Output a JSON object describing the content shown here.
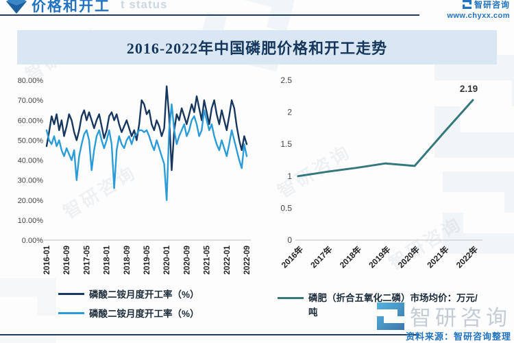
{
  "brand": {
    "name": "智研咨询",
    "site": "www.chyxx.com"
  },
  "header": {
    "section_title": "价格和开工",
    "ghost_text": "t status"
  },
  "main_title": "2016-2022年中国磷肥价格和开工走势",
  "footer": {
    "source_note": "资料来源：智研咨询整理"
  },
  "colors": {
    "accent_blue": "#2273bf",
    "navy_rule": "#1f3864",
    "band_bg": "#d9e7f4",
    "series_dark": "#17375e",
    "series_light": "#2b9cd8",
    "series_teal": "#35787c"
  },
  "chart_data": [
    {
      "type": "line",
      "x_unit": "month",
      "x_range": [
        "2016-01",
        "2022-09"
      ],
      "x_ticks": [
        "2016-01",
        "2016-09",
        "2017-05",
        "2018-01",
        "2018-09",
        "2019-05",
        "2020-01",
        "2020-09",
        "2021-05",
        "2022-01",
        "2022-09"
      ],
      "x_tick_step": 8,
      "ylim": [
        0,
        80
      ],
      "grid": false,
      "legend_position": "bottom",
      "y_ticks": [
        {
          "v": 0,
          "label": "0.00%"
        },
        {
          "v": 10,
          "label": "10.00%"
        },
        {
          "v": 20,
          "label": "20.00%"
        },
        {
          "v": 30,
          "label": "30.00%"
        },
        {
          "v": 40,
          "label": "40.00%"
        },
        {
          "v": 50,
          "label": "50.00%"
        },
        {
          "v": 60,
          "label": "60.00%"
        },
        {
          "v": 70,
          "label": "70.00%"
        },
        {
          "v": 80,
          "label": "80.00%"
        }
      ],
      "series": [
        {
          "name": "磷酸二铵月度开工率（%）",
          "color": "#17375e",
          "values": [
            47,
            54,
            62,
            58,
            63,
            55,
            60,
            52,
            57,
            63,
            60,
            54,
            50,
            55,
            62,
            65,
            60,
            64,
            60,
            56,
            60,
            63,
            57,
            51,
            55,
            62,
            64,
            60,
            63,
            58,
            54,
            57,
            60,
            56,
            52,
            55,
            50,
            58,
            70,
            68,
            63,
            65,
            58,
            55,
            60,
            57,
            52,
            56,
            77,
            62,
            35,
            55,
            63,
            60,
            66,
            62,
            58,
            63,
            68,
            64,
            72,
            66,
            60,
            70,
            64,
            58,
            66,
            70,
            63,
            58,
            65,
            60,
            55,
            62,
            70,
            66,
            57,
            50,
            45,
            52,
            48
          ]
        },
        {
          "name": "磷酸二铵月度开工率（%）",
          "color": "#2b9cd8",
          "values": [
            55,
            50,
            48,
            52,
            47,
            50,
            45,
            42,
            46,
            43,
            40,
            45,
            30,
            42,
            48,
            53,
            55,
            50,
            35,
            45,
            52,
            55,
            50,
            46,
            50,
            55,
            48,
            26,
            45,
            52,
            48,
            46,
            50,
            52,
            48,
            52,
            53,
            55,
            55,
            54,
            55,
            52,
            48,
            45,
            50,
            46,
            42,
            38,
            20,
            55,
            68,
            55,
            48,
            52,
            55,
            58,
            52,
            55,
            60,
            62,
            58,
            52,
            55,
            65,
            60,
            55,
            58,
            52,
            48,
            45,
            50,
            46,
            42,
            48,
            55,
            50,
            45,
            40,
            36,
            48,
            42
          ]
        }
      ]
    },
    {
      "type": "line",
      "x_unit": "year",
      "x_ticks": [
        "2016年",
        "2017年",
        "2018年",
        "2019年",
        "2020年",
        "2021年",
        "2022年"
      ],
      "x_tick_step": 1,
      "ylim": [
        0,
        2.5
      ],
      "grid": false,
      "legend_position": "bottom",
      "point_label": "2.19",
      "y_ticks": [
        {
          "v": 0,
          "label": "0"
        },
        {
          "v": 0.5,
          "label": "0.5"
        },
        {
          "v": 1,
          "label": "1"
        },
        {
          "v": 1.5,
          "label": "1.5"
        },
        {
          "v": 2,
          "label": "2"
        },
        {
          "v": 2.5,
          "label": "2.5"
        }
      ],
      "series": [
        {
          "name": "磷肥（折合五氧化二磷）市场均价：万元/吨",
          "color": "#35787c",
          "values": [
            1.0,
            1.07,
            1.13,
            1.2,
            1.16,
            1.68,
            2.19
          ]
        }
      ]
    }
  ]
}
